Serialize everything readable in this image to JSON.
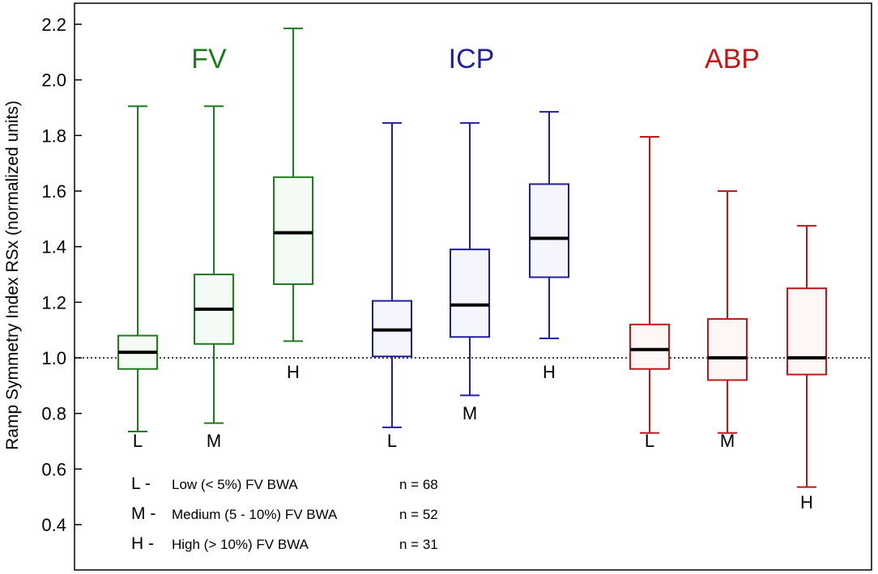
{
  "chart_data": {
    "type": "boxplot",
    "ylabel": "Ramp Symmetry Index   RSx   (normalized units)",
    "ylim": [
      0.3,
      2.25
    ],
    "yticks": [
      0.4,
      0.6,
      0.8,
      1.0,
      1.2,
      1.4,
      1.6,
      1.8,
      2.0,
      2.2
    ],
    "ytick_labels": [
      "0.4",
      "0.6",
      "0.8",
      "1.0",
      "1.2",
      "1.4",
      "1.6",
      "1.8",
      "2.0",
      "2.2"
    ],
    "reference_line": 1.0,
    "groups": [
      {
        "name": "FV",
        "color": "#1e7b1e",
        "fill": "#f4fbf4",
        "boxes": [
          {
            "category": "L",
            "min": 0.735,
            "q1": 0.96,
            "median": 1.02,
            "q3": 1.08,
            "max": 1.905
          },
          {
            "category": "M",
            "min": 0.765,
            "q1": 1.05,
            "median": 1.175,
            "q3": 1.3,
            "max": 1.905
          },
          {
            "category": "H",
            "min": 1.06,
            "q1": 1.265,
            "median": 1.45,
            "q3": 1.65,
            "max": 2.185
          }
        ]
      },
      {
        "name": "ICP",
        "color": "#1f1fa0",
        "fill": "#f5f5fd",
        "boxes": [
          {
            "category": "L",
            "min": 0.75,
            "q1": 1.005,
            "median": 1.1,
            "q3": 1.205,
            "max": 1.845
          },
          {
            "category": "M",
            "min": 0.865,
            "q1": 1.075,
            "median": 1.19,
            "q3": 1.39,
            "max": 1.845
          },
          {
            "category": "H",
            "min": 1.07,
            "q1": 1.29,
            "median": 1.43,
            "q3": 1.625,
            "max": 1.885
          }
        ]
      },
      {
        "name": "ABP",
        "color": "#c01818",
        "fill": "#fff6f6",
        "boxes": [
          {
            "category": "L",
            "min": 0.73,
            "q1": 0.96,
            "median": 1.03,
            "q3": 1.12,
            "max": 1.795
          },
          {
            "category": "M",
            "min": 0.73,
            "q1": 0.92,
            "median": 1.0,
            "q3": 1.14,
            "max": 1.6
          },
          {
            "category": "H",
            "min": 0.535,
            "q1": 0.94,
            "median": 1.0,
            "q3": 1.25,
            "max": 1.475
          }
        ]
      }
    ],
    "legend": [
      {
        "key": "L -",
        "text": "Low (< 5%) FV BWA",
        "n": "n = 68"
      },
      {
        "key": "M -",
        "text": "Medium (5 - 10%) FV BWA",
        "n": "n = 52"
      },
      {
        "key": "H -",
        "text": "High (> 10%) FV BWA",
        "n": "n = 31"
      }
    ]
  }
}
